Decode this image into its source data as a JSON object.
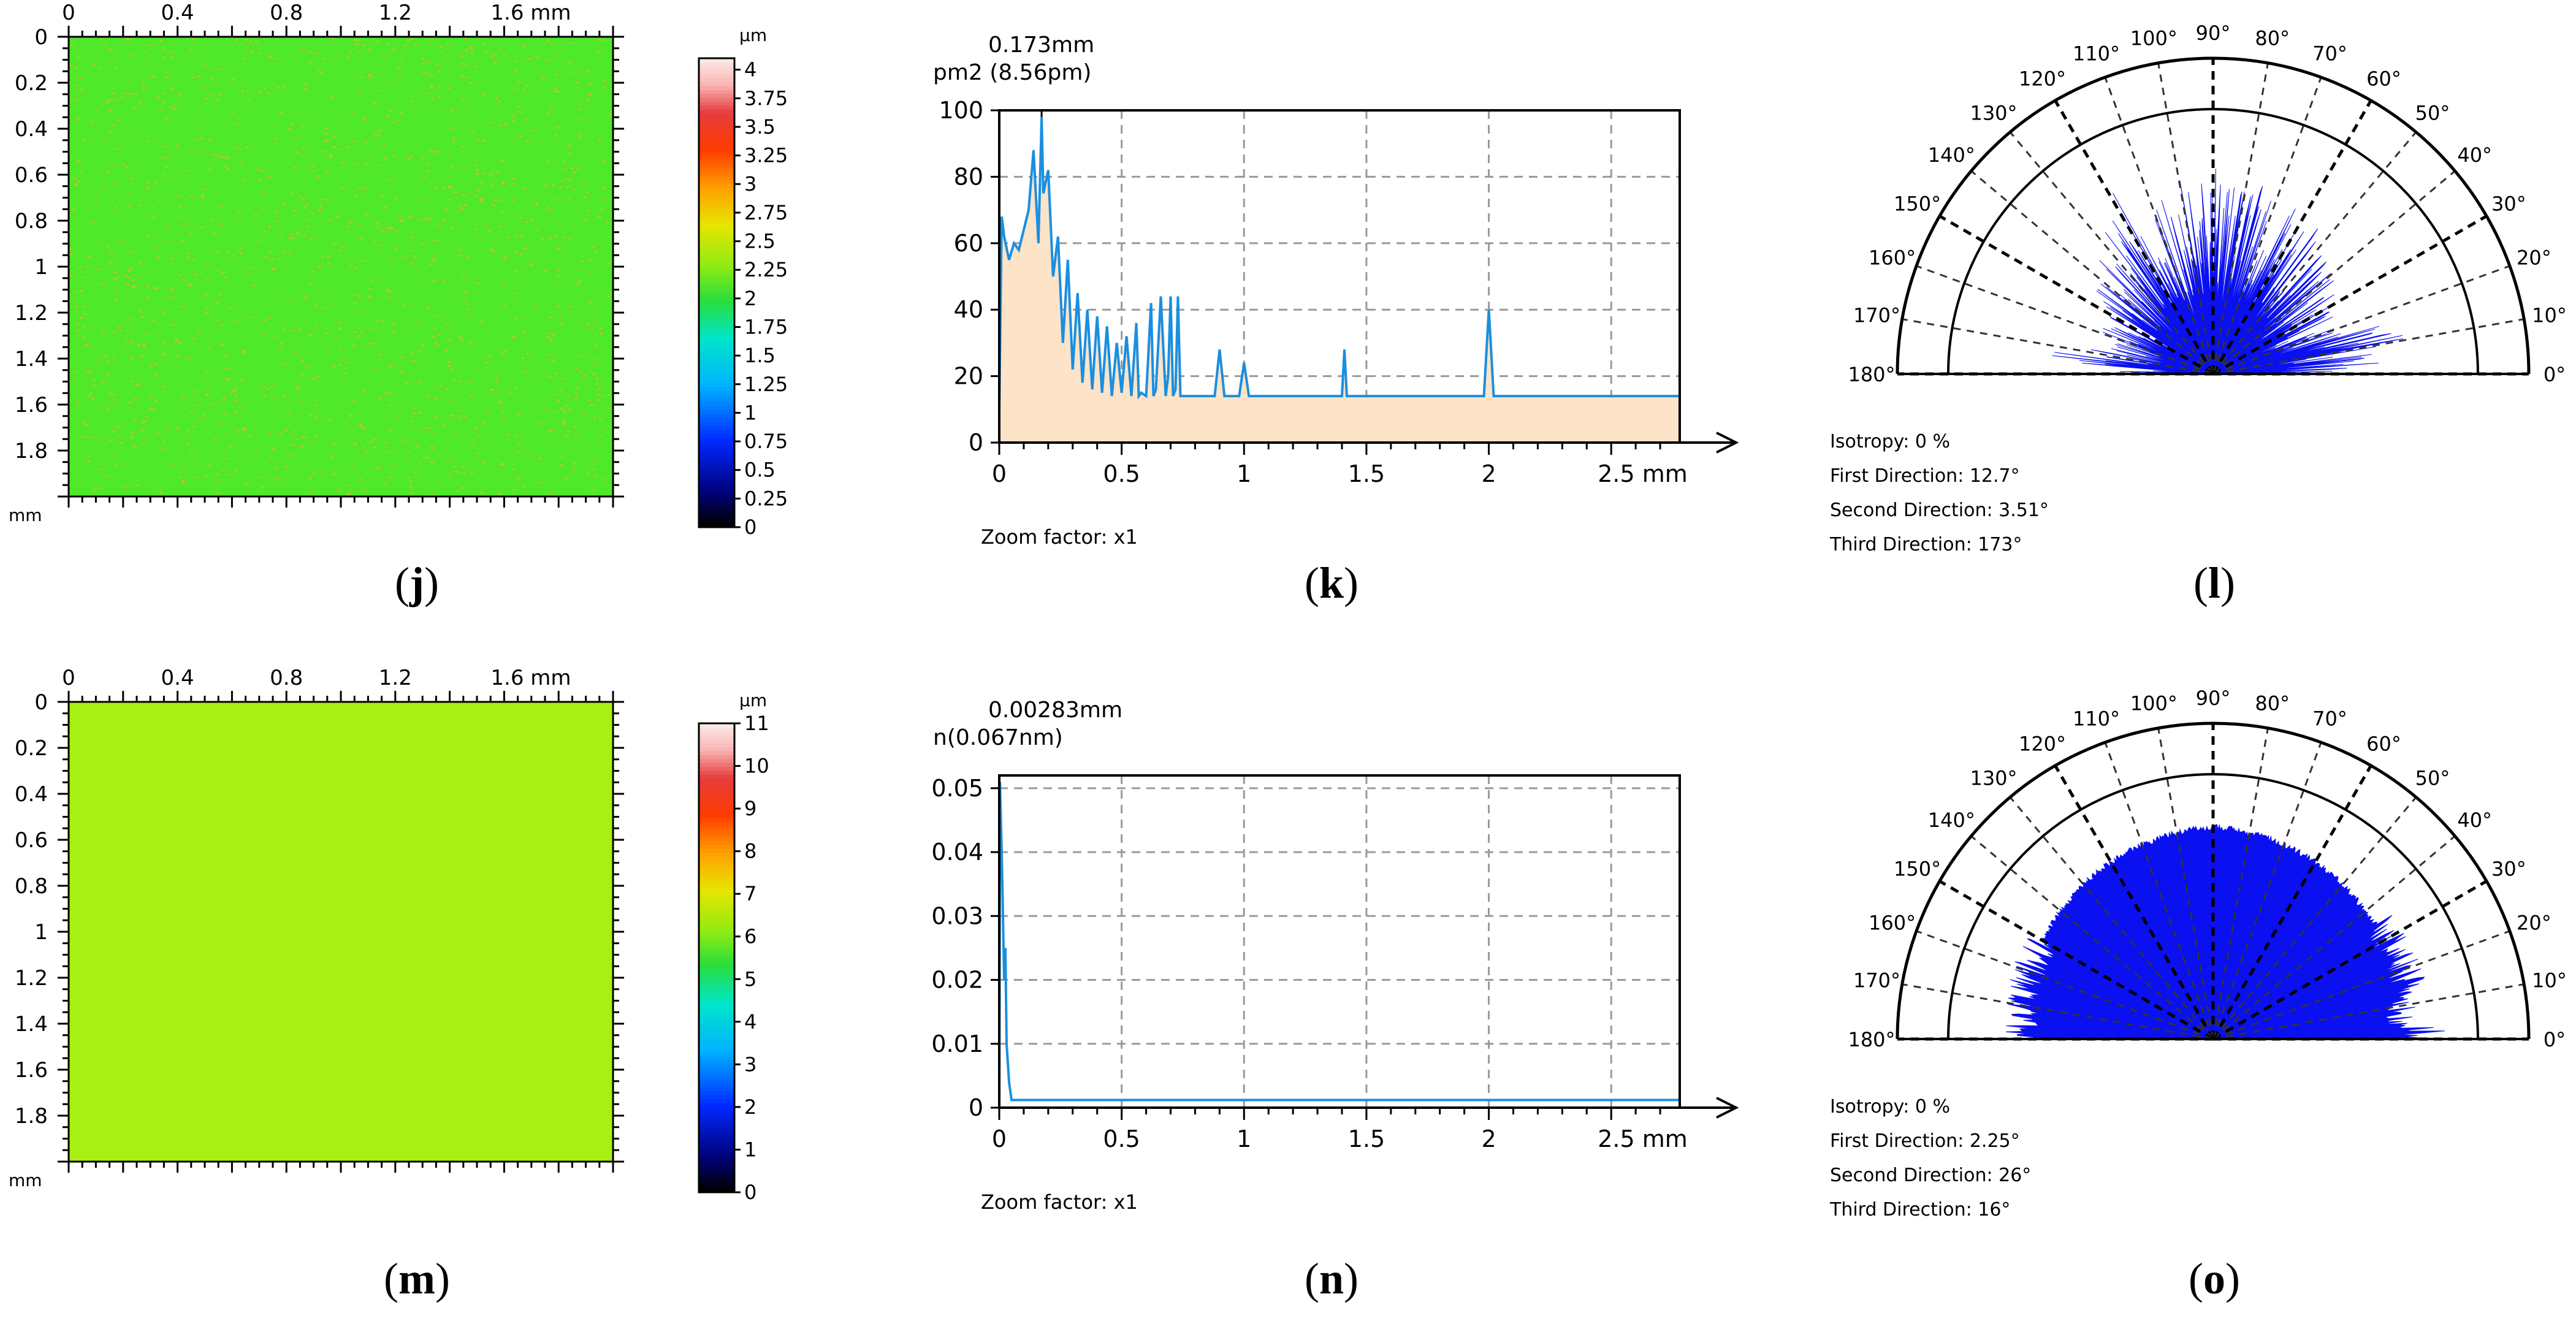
{
  "colors": {
    "map_j": "#4fe82a",
    "map_m": "#a8f014",
    "spectrum_fill": "#fde3c8",
    "spectrum_line": "#1a8fe0",
    "rose_fill": "#0a10f0",
    "speckle": "#ffb020"
  },
  "captions": [
    {
      "paren_open": "(",
      "letter": "j",
      "paren_close": ")"
    },
    {
      "paren_open": "(",
      "letter": "k",
      "paren_close": ")"
    },
    {
      "paren_open": "(",
      "letter": "l",
      "paren_close": ")"
    },
    {
      "paren_open": "(",
      "letter": "m",
      "paren_close": ")"
    },
    {
      "paren_open": "(",
      "letter": "n",
      "paren_close": ")"
    },
    {
      "paren_open": "(",
      "letter": "o",
      "paren_close": ")"
    }
  ],
  "chart_data": [
    {
      "id": "j",
      "type": "heatmap",
      "x_ticks": [
        "0",
        "0.4",
        "0.8",
        "1.2",
        "1.6 mm"
      ],
      "y_ticks": [
        "0",
        "0.2",
        "0.4",
        "0.6",
        "0.8",
        "1",
        "1.2",
        "1.4",
        "1.6",
        "1.8"
      ],
      "unit_label": "mm",
      "xlim": [
        0,
        2
      ],
      "ylim": [
        0,
        2
      ],
      "colorbar": {
        "unit": "µm",
        "ticks": [
          "4",
          "3.75",
          "3.5",
          "3.25",
          "3",
          "2.75",
          "2.5",
          "2.25",
          "2",
          "1.75",
          "1.5",
          "1.25",
          "1",
          "0.75",
          "0.5",
          "0.25",
          "0"
        ],
        "range": [
          0,
          4.1
        ]
      },
      "dominant_value": 1.95
    },
    {
      "id": "k",
      "type": "line",
      "title_line1": "0.173mm",
      "title_line2": "pm2  (8.56pm)",
      "x_ticks": [
        "0",
        "0.5",
        "1",
        "1.5",
        "2",
        "2.5 mm"
      ],
      "y_ticks": [
        "0",
        "20",
        "40",
        "60",
        "80",
        "100"
      ],
      "xlim": [
        0,
        2.78
      ],
      "ylim": [
        0,
        100
      ],
      "zoom_label": "Zoom factor: x1",
      "peak": {
        "x": 0.173,
        "y": 98
      },
      "x": [
        0,
        0.01,
        0.02,
        0.04,
        0.06,
        0.08,
        0.1,
        0.12,
        0.14,
        0.16,
        0.173,
        0.18,
        0.2,
        0.22,
        0.24,
        0.26,
        0.28,
        0.3,
        0.32,
        0.34,
        0.36,
        0.38,
        0.4,
        0.42,
        0.44,
        0.46,
        0.48,
        0.5,
        0.52,
        0.54,
        0.56,
        0.57,
        0.58,
        0.6,
        0.62,
        0.63,
        0.64,
        0.66,
        0.68,
        0.69,
        0.7,
        0.71,
        0.72,
        0.73,
        0.74,
        0.8,
        0.88,
        0.9,
        0.92,
        0.98,
        1.0,
        1.02,
        1.1,
        1.4,
        1.41,
        1.42,
        1.5,
        1.98,
        2.0,
        2.02,
        2.2,
        2.5,
        2.78
      ],
      "values": [
        10,
        68,
        62,
        55,
        60,
        58,
        64,
        70,
        88,
        60,
        98,
        75,
        82,
        50,
        62,
        30,
        55,
        22,
        45,
        18,
        40,
        16,
        38,
        15,
        35,
        14,
        30,
        15,
        32,
        14,
        36,
        14,
        15,
        14,
        42,
        14,
        16,
        44,
        14,
        20,
        44,
        14,
        16,
        44,
        14,
        14,
        14,
        28,
        14,
        14,
        24,
        14,
        14,
        14,
        28,
        14,
        14,
        14,
        40,
        14,
        14,
        14,
        14
      ]
    },
    {
      "id": "l",
      "type": "polar",
      "angle_labels": [
        "0°",
        "10°",
        "20°",
        "30°",
        "40°",
        "50°",
        "60°",
        "70°",
        "80°",
        "90°",
        "100°",
        "110°",
        "120°",
        "130°",
        "140°",
        "150°",
        "160°",
        "170°",
        "180°"
      ],
      "stats": [
        {
          "label": "Isotropy:",
          "value": "0 %"
        },
        {
          "label": "First Direction:",
          "value": "12.7°"
        },
        {
          "label": "Second Direction:",
          "value": "3.51°"
        },
        {
          "label": "Third Direction:",
          "value": "173°"
        }
      ],
      "radius_profile": {
        "angles_deg": [
          0,
          3.51,
          8,
          12.7,
          20,
          30,
          40,
          50,
          60,
          70,
          80,
          90,
          100,
          110,
          120,
          130,
          140,
          150,
          160,
          170,
          173,
          180
        ],
        "values": [
          0.3,
          0.55,
          0.45,
          0.68,
          0.42,
          0.48,
          0.5,
          0.55,
          0.58,
          0.6,
          0.62,
          0.6,
          0.6,
          0.58,
          0.6,
          0.55,
          0.5,
          0.42,
          0.35,
          0.4,
          0.55,
          0.22
        ]
      }
    },
    {
      "id": "m",
      "type": "heatmap",
      "x_ticks": [
        "0",
        "0.4",
        "0.8",
        "1.2",
        "1.6 mm"
      ],
      "y_ticks": [
        "0",
        "0.2",
        "0.4",
        "0.6",
        "0.8",
        "1",
        "1.2",
        "1.4",
        "1.6",
        "1.8"
      ],
      "unit_label": "mm",
      "xlim": [
        0,
        2
      ],
      "ylim": [
        0,
        2
      ],
      "colorbar": {
        "unit": "µm",
        "ticks": [
          "11",
          "10",
          "9",
          "8",
          "7",
          "6",
          "5",
          "4",
          "3",
          "2",
          "1",
          "0"
        ],
        "range": [
          0,
          11
        ]
      },
      "dominant_value": 5.6
    },
    {
      "id": "n",
      "type": "line",
      "title_line1": "0.00283mm",
      "title_line2": "n(0.067nm)",
      "x_ticks": [
        "0",
        "0.5",
        "1",
        "1.5",
        "2",
        "2.5 mm"
      ],
      "y_ticks": [
        "0",
        "0.01",
        "0.02",
        "0.03",
        "0.04",
        "0.05"
      ],
      "xlim": [
        0,
        2.78
      ],
      "ylim": [
        0,
        0.052
      ],
      "zoom_label": "Zoom factor: x1",
      "x": [
        0,
        0.00283,
        0.01,
        0.015,
        0.02,
        0.025,
        0.03,
        0.04,
        0.05,
        0.1,
        1.0,
        2.0,
        2.78
      ],
      "values": [
        0.0,
        0.051,
        0.04,
        0.03,
        0.02,
        0.025,
        0.01,
        0.004,
        0.0012,
        0.0012,
        0.0012,
        0.0012,
        0.0012
      ]
    },
    {
      "id": "o",
      "type": "polar",
      "angle_labels": [
        "0°",
        "10°",
        "20°",
        "30°",
        "40°",
        "50°",
        "60°",
        "70°",
        "80°",
        "90°",
        "100°",
        "110°",
        "120°",
        "130°",
        "140°",
        "150°",
        "160°",
        "170°",
        "180°"
      ],
      "stats": [
        {
          "label": "Isotropy:",
          "value": "0 %"
        },
        {
          "label": "First Direction:",
          "value": "2.25°"
        },
        {
          "label": "Second Direction:",
          "value": "26°"
        },
        {
          "label": "Third Direction:",
          "value": "16°"
        }
      ],
      "radius_profile": {
        "angles_deg": [
          0,
          2.25,
          5,
          10,
          16,
          20,
          26,
          30,
          40,
          50,
          60,
          70,
          80,
          90,
          100,
          110,
          120,
          130,
          140,
          150,
          160,
          170,
          180
        ],
        "values": [
          0.72,
          0.8,
          0.7,
          0.72,
          0.78,
          0.74,
          0.77,
          0.75,
          0.75,
          0.76,
          0.77,
          0.78,
          0.79,
          0.8,
          0.79,
          0.78,
          0.77,
          0.76,
          0.75,
          0.74,
          0.73,
          0.74,
          0.72
        ]
      }
    }
  ]
}
